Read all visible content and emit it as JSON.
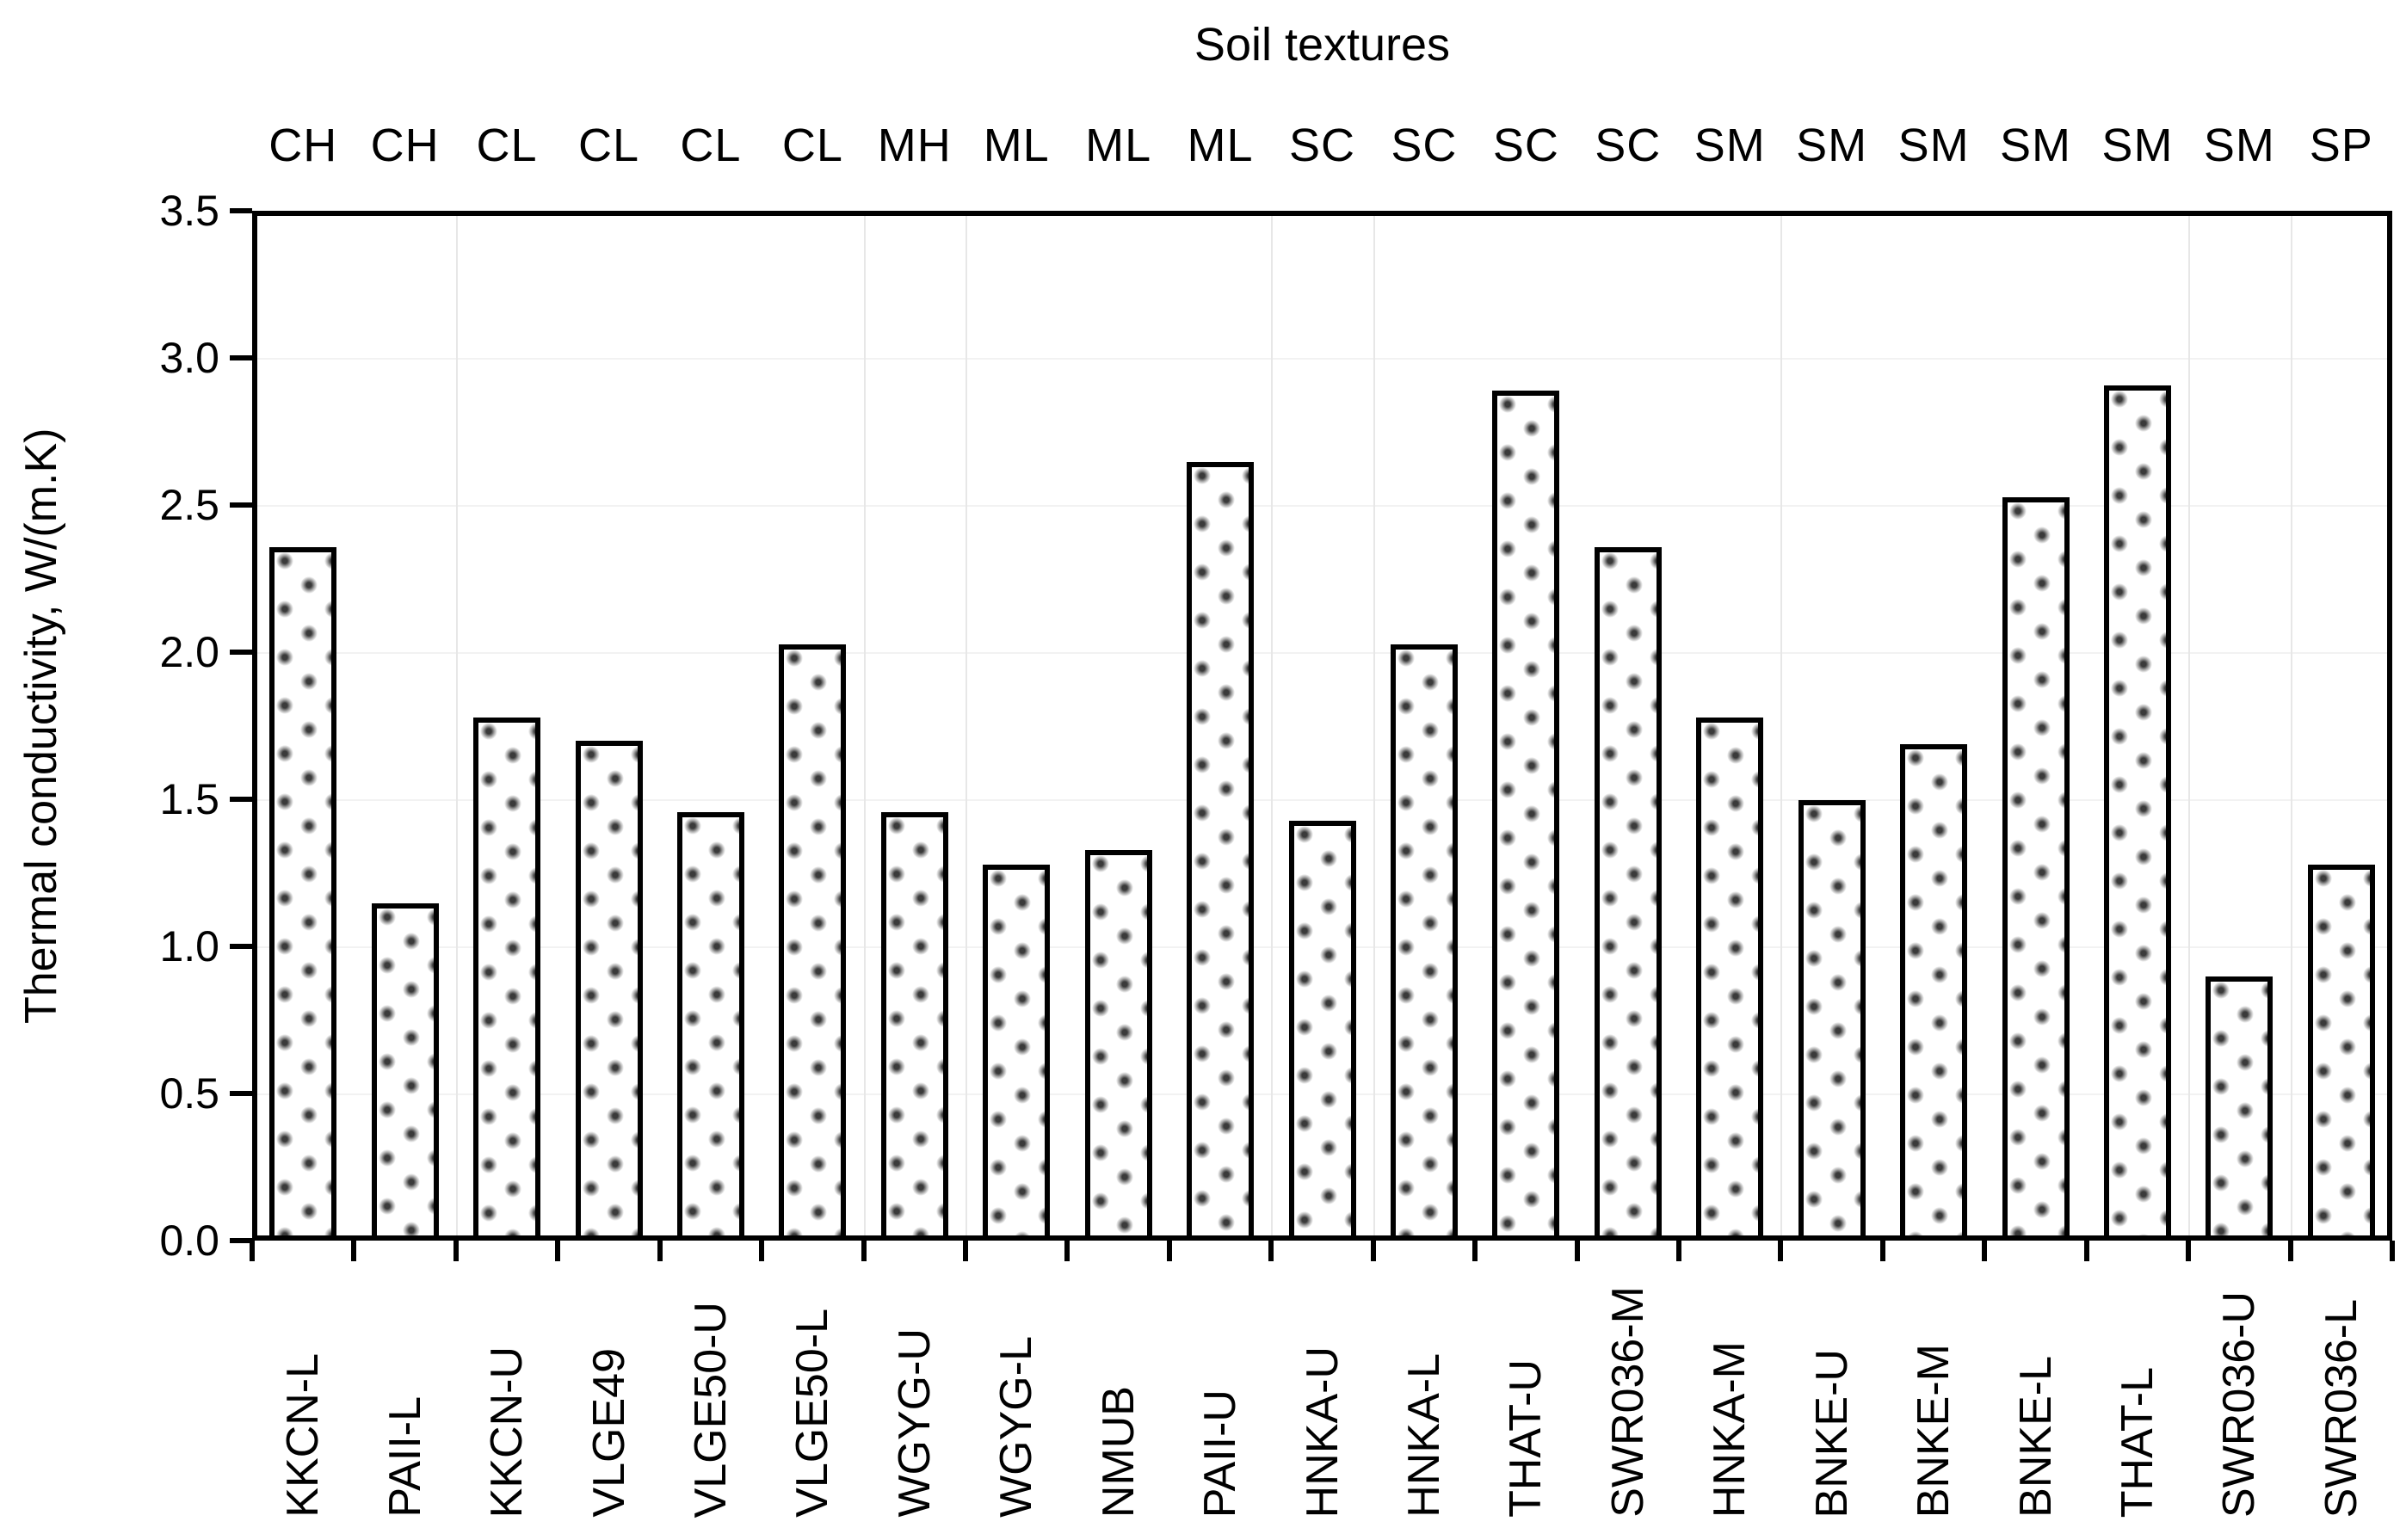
{
  "chart_data": {
    "type": "bar",
    "title": "Soil textures",
    "ylabel": "Thermal conductivity, W/(m.K)",
    "xlabel": "",
    "ylim": [
      0,
      3.5
    ],
    "ytick_step": 0.5,
    "ytick_labels": [
      "0.0",
      "0.5",
      "1.0",
      "1.5",
      "2.0",
      "2.5",
      "3.0",
      "3.5"
    ],
    "legend_position": "none",
    "grid": "very faint horizontal lines at 0.5 intervals; faint vertical separators between texture groups",
    "bar_fill": "white with gray polka-dot pattern",
    "bar_edge_color": "#000000",
    "background_color": "#ffffff",
    "categories": [
      "KKCN-L",
      "PAII-L",
      "KKCN-U",
      "VLGE49",
      "VLGE50-U",
      "VLGE50-L",
      "WGYG-U",
      "WGYG-L",
      "NMUB",
      "PAII-U",
      "HNKA-U",
      "HNKA-L",
      "THAT-U",
      "SWR036-M",
      "HNKA-M",
      "BNKE-U",
      "BNKE-M",
      "BNKE-L",
      "THAT-L",
      "SWR036-U",
      "SWR036-L"
    ],
    "texture_labels": [
      "CH",
      "CH",
      "CL",
      "CL",
      "CL",
      "CL",
      "MH",
      "ML",
      "ML",
      "ML",
      "SC",
      "SC",
      "SC",
      "SC",
      "SM",
      "SM",
      "SM",
      "SM",
      "SM",
      "SM",
      "SP"
    ],
    "values": [
      2.34,
      1.13,
      1.76,
      1.68,
      1.44,
      2.01,
      1.44,
      1.26,
      1.31,
      2.63,
      1.41,
      2.01,
      2.87,
      2.34,
      1.76,
      1.48,
      1.67,
      2.51,
      2.89,
      0.88,
      1.26
    ],
    "separator_after_bars": [
      2,
      6,
      7,
      10,
      11,
      15,
      19,
      20
    ]
  }
}
